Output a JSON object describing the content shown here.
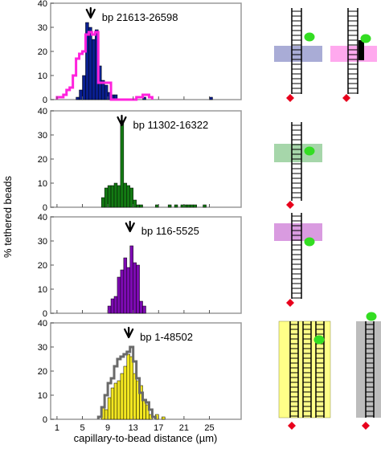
{
  "figure": {
    "ylabel": "% tethered beads",
    "xlabel": "capillary-to-bead distance (µm)",
    "x_ticks": [
      "1",
      "5",
      "9",
      "13",
      "17",
      "21",
      "25"
    ],
    "y_ticks": [
      "0",
      "10",
      "20",
      "30",
      "40"
    ]
  },
  "chart_data": [
    {
      "type": "bar",
      "panel_label": "bp 21613-26598",
      "xlim": [
        0,
        30
      ],
      "ylim": [
        0,
        40
      ],
      "bin_width": 0.5,
      "bar_color": "#0a1f8f",
      "arrow_x": 6.3,
      "x": [
        4,
        4.5,
        5,
        5.5,
        6,
        6.5,
        7,
        7.5,
        8,
        8.5,
        9,
        9.5,
        10,
        14.5,
        25
      ],
      "values": [
        1,
        4,
        10,
        32,
        30,
        25,
        29,
        14,
        8,
        6,
        3,
        2,
        2,
        1,
        1
      ],
      "overlay": {
        "color": "#ff22dd",
        "x": [
          1,
          1.5,
          2,
          2.5,
          3,
          3.5,
          4,
          4.5,
          5,
          5.5,
          6,
          6.5,
          7,
          7.5,
          8,
          8.5,
          9,
          9.5,
          10,
          10.5,
          11,
          11.5,
          12,
          12.5,
          13,
          13.5,
          14,
          14.5,
          15,
          15.5
        ],
        "values": [
          1,
          1,
          2,
          4,
          5,
          10,
          17,
          19,
          20,
          27,
          28,
          27,
          28,
          7,
          7,
          7,
          7,
          0,
          0,
          0,
          0,
          0,
          0,
          0,
          0,
          1,
          1,
          2,
          2,
          1
        ]
      }
    },
    {
      "type": "bar",
      "panel_label": "bp 11302-16322",
      "xlim": [
        0,
        30
      ],
      "ylim": [
        0,
        40
      ],
      "bin_width": 0.5,
      "bar_color": "#137a13",
      "arrow_x": 11.2,
      "x": [
        8,
        8.5,
        9,
        9.5,
        10,
        10.5,
        11,
        11.5,
        12,
        12.5,
        13,
        13.5,
        14,
        16.5,
        18.5,
        19.5,
        20.5,
        21,
        21.5,
        22,
        22.5,
        24
      ],
      "values": [
        4,
        8,
        9,
        9,
        10,
        9,
        36,
        10,
        9,
        8,
        3,
        1,
        1,
        1,
        1,
        1,
        1,
        1,
        1,
        1,
        1,
        1
      ]
    },
    {
      "type": "bar",
      "panel_label": "bp 116-5525",
      "xlim": [
        0,
        30
      ],
      "ylim": [
        0,
        40
      ],
      "bin_width": 0.5,
      "bar_color": "#7d0ab2",
      "arrow_x": 12.5,
      "x": [
        9,
        9.5,
        10,
        10.5,
        11,
        11.5,
        12,
        12.5,
        13,
        13.5,
        14,
        14.5
      ],
      "values": [
        3,
        6,
        7,
        15,
        18,
        23,
        19,
        28,
        21,
        20,
        5,
        3
      ]
    },
    {
      "type": "bar",
      "panel_label": "bp 1-48502",
      "xlim": [
        0,
        30
      ],
      "ylim": [
        0,
        40
      ],
      "bin_width": 0.5,
      "bar_color": "#f2e620",
      "arrow_x": 12.3,
      "x": [
        8,
        8.5,
        9,
        9.5,
        10,
        10.5,
        11,
        11.5,
        12,
        12.5,
        13,
        13.5,
        14,
        14.5,
        15,
        15.5,
        16.5,
        17.5
      ],
      "values": [
        5,
        4,
        9,
        13,
        15,
        16,
        19,
        22,
        27,
        26,
        19,
        16,
        14,
        8,
        6,
        2,
        2,
        1
      ],
      "overlay": {
        "color": "#6a6a6a",
        "x": [
          7.5,
          8,
          8.5,
          9,
          9.5,
          10,
          10.5,
          11,
          11.5,
          12,
          12.5,
          13,
          13.5,
          14,
          14.5,
          15,
          15.5,
          16
        ],
        "values": [
          1,
          5,
          10,
          15,
          17,
          22,
          25,
          26,
          27,
          28,
          30,
          24,
          17,
          11,
          8,
          7,
          4,
          1
        ]
      }
    }
  ],
  "diagrams": [
    [
      {
        "band": "#a9acd6",
        "variant": "single"
      },
      {
        "band": "#ffa9ee",
        "variant": "single-bound"
      }
    ],
    [
      {
        "band": "#a6d6aa",
        "variant": "single"
      }
    ],
    [
      {
        "band": "#d99be0",
        "variant": "single"
      }
    ],
    [
      {
        "band": "#ffff88",
        "variant": "double"
      },
      {
        "band": "#bdbdbd",
        "variant": "single-tall"
      }
    ]
  ]
}
